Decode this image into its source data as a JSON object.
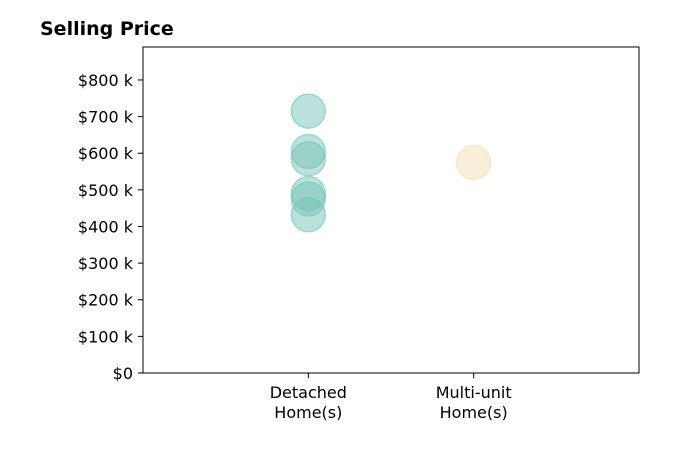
{
  "chart_data": {
    "type": "scatter",
    "title": "Selling Price",
    "xlabel": "",
    "ylabel": "",
    "categories": [
      {
        "id": "detached",
        "lines": [
          "Detached",
          "Home(s)"
        ]
      },
      {
        "id": "multi",
        "lines": [
          "Multi-unit",
          "Home(s)"
        ]
      }
    ],
    "x_range": [
      0,
      3
    ],
    "ylim": [
      0,
      890000
    ],
    "y_ticks": [
      0,
      100000,
      200000,
      300000,
      400000,
      500000,
      600000,
      700000,
      800000
    ],
    "y_tick_labels": [
      "$0",
      "$100 k",
      "$200 k",
      "$300 k",
      "$400 k",
      "$500 k",
      "$600 k",
      "$700 k",
      "$800 k"
    ],
    "series": [
      {
        "category": "detached",
        "x": 1,
        "values": [
          715000,
          605000,
          585000,
          490000,
          475000,
          432000
        ],
        "color": "#76c4b7"
      },
      {
        "category": "multi",
        "x": 2,
        "values": [
          575000
        ],
        "color": "#f3deb5"
      }
    ],
    "grid": false,
    "legend": "none"
  }
}
